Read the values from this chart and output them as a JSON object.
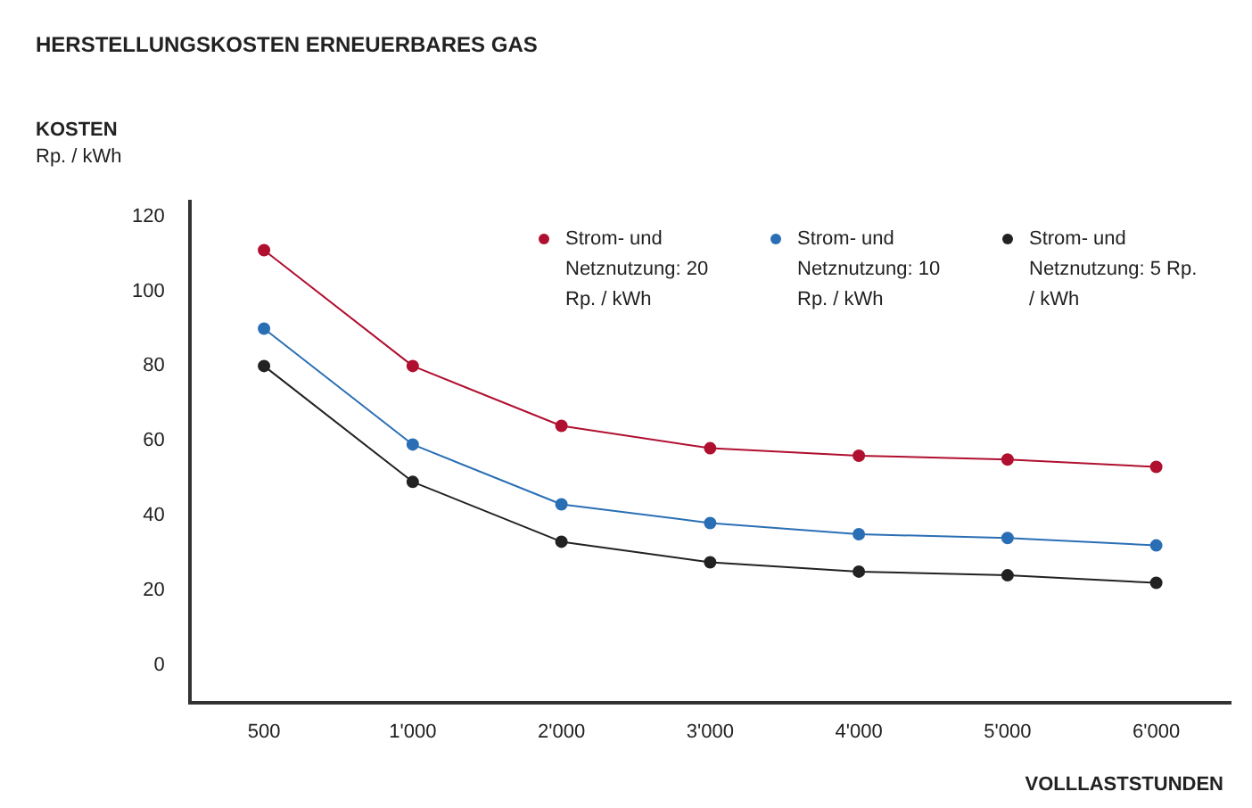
{
  "chart_data": {
    "type": "line",
    "title": "HERSTELLUNGSKOSTEN ERNEUERBARES GAS",
    "ylabel": "KOSTEN\nRp. / kWh",
    "xlabel": "VOLLLASTSTUNDEN",
    "categories": [
      "500",
      "1'000",
      "2'000",
      "3'000",
      "4'000",
      "5'000",
      "6'000"
    ],
    "series": [
      {
        "name": "Strom- und Netznutzung: 20 Rp. / kWh",
        "color": "#b01030",
        "values": [
          111,
          80,
          64,
          58,
          56,
          55,
          53
        ]
      },
      {
        "name": "Strom- und Netznutzung: 10 Rp. / kWh",
        "color": "#2a6fb5",
        "values": [
          90,
          59,
          43,
          38,
          35,
          34,
          32
        ]
      },
      {
        "name": "Strom- und Netznutzung: 5 Rp. / kWh",
        "color": "#222222",
        "values": [
          80,
          49,
          33,
          27.5,
          25,
          24,
          22
        ]
      }
    ],
    "ylim": [
      -10,
      124
    ],
    "yticks": [
      0,
      20,
      40,
      60,
      80,
      100,
      120
    ],
    "grid": false,
    "legend": "top right",
    "marker": "circle",
    "line_style": "solid"
  }
}
